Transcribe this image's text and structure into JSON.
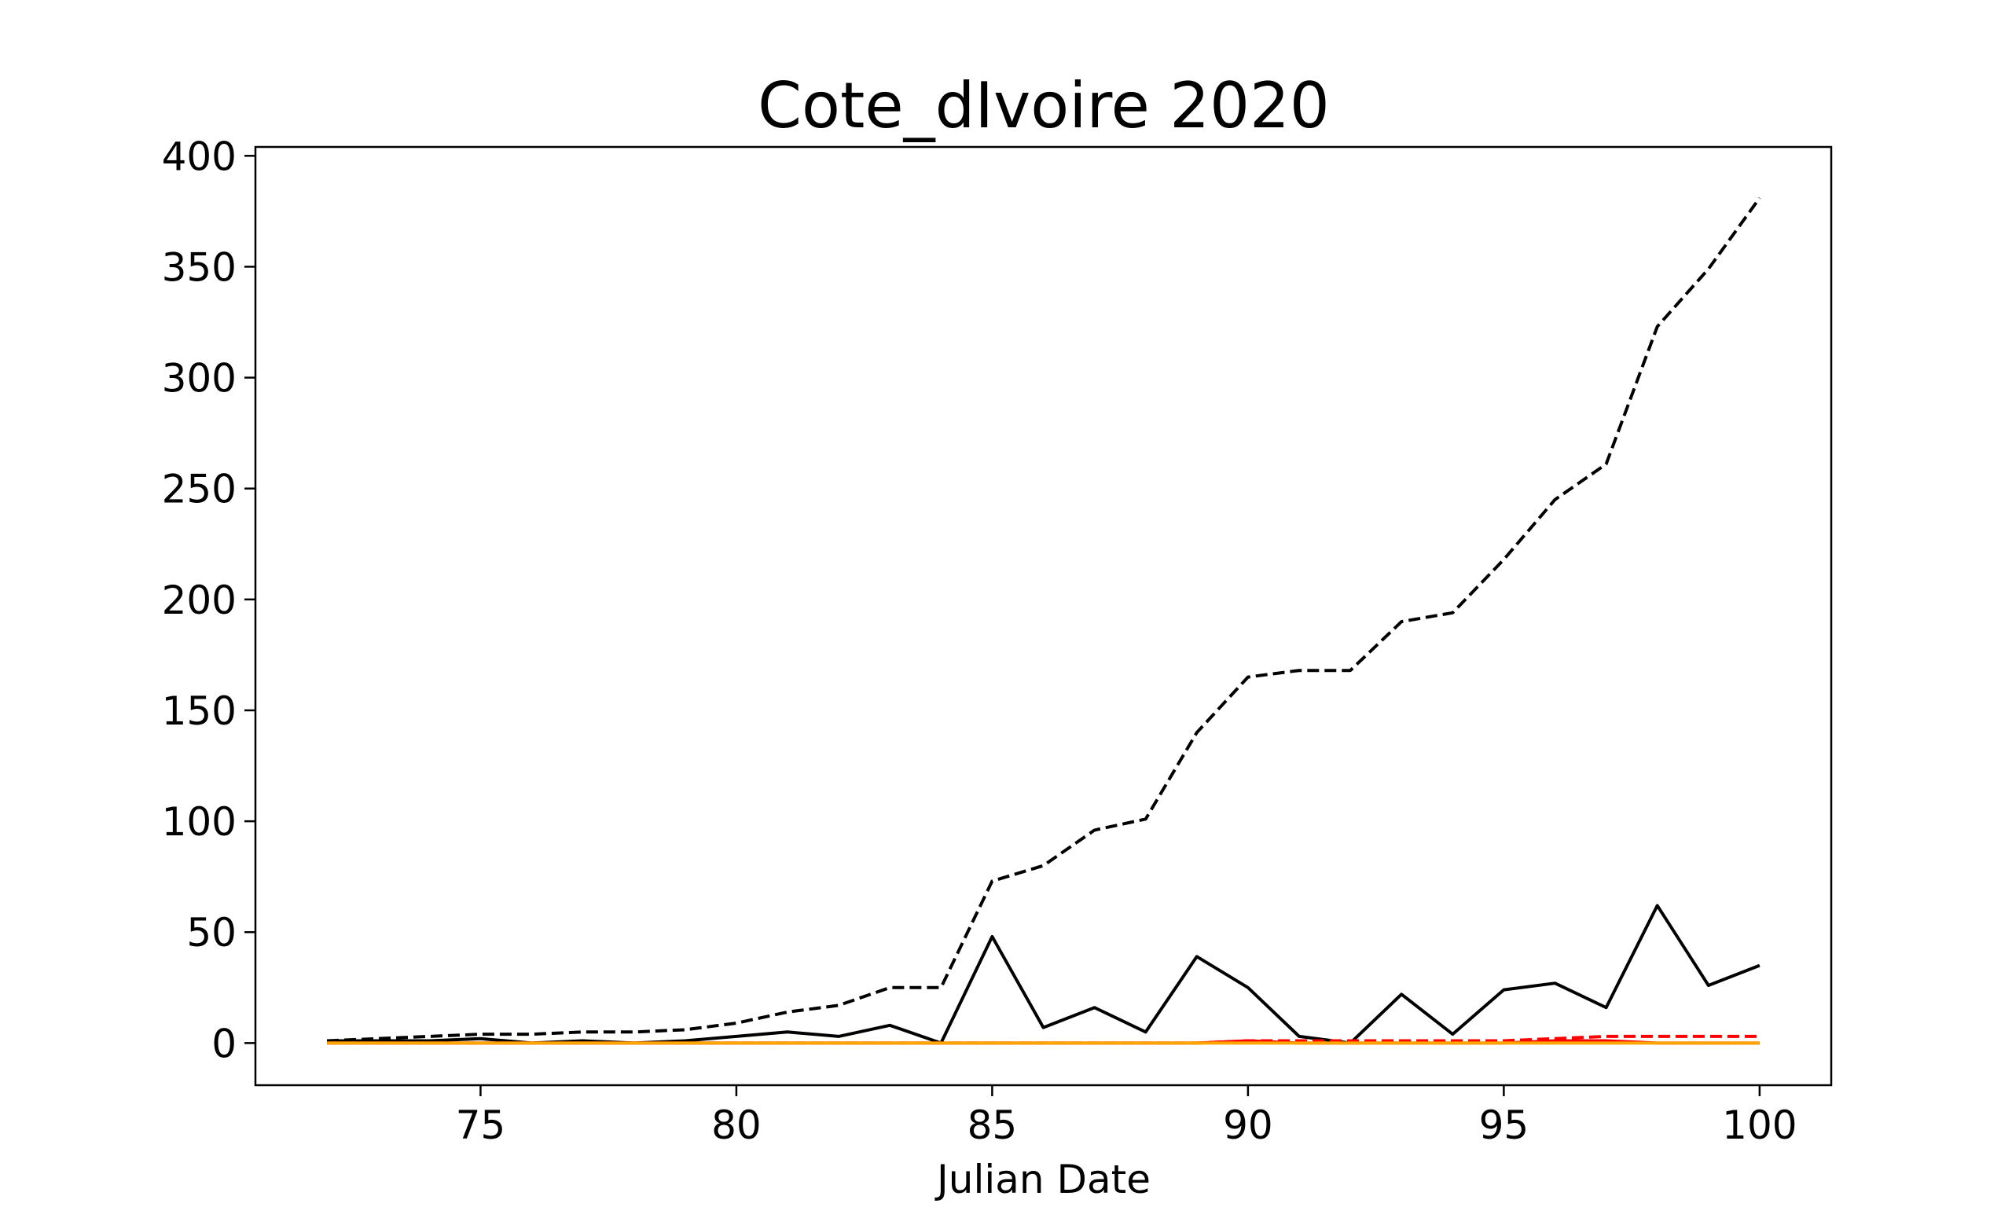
{
  "chart_data": {
    "type": "line",
    "title": "Cote_dIvoire 2020",
    "xlabel": "Julian Date",
    "ylabel": "",
    "xlim": [
      70.6,
      101.4
    ],
    "ylim": [
      -19,
      404
    ],
    "xticks": [
      75,
      80,
      85,
      90,
      95,
      100
    ],
    "yticks": [
      0,
      50,
      100,
      150,
      200,
      250,
      300,
      350,
      400
    ],
    "grid": false,
    "legend": "none",
    "x": [
      72,
      73,
      74,
      75,
      76,
      77,
      78,
      79,
      80,
      81,
      82,
      83,
      84,
      85,
      86,
      87,
      88,
      89,
      90,
      91,
      92,
      93,
      94,
      95,
      96,
      97,
      98,
      99,
      100
    ],
    "series": [
      {
        "color": "#000000",
        "style": "dashed",
        "values": [
          1,
          2,
          3,
          4,
          4,
          5,
          5,
          6,
          9,
          14,
          17,
          25,
          25,
          73,
          80,
          96,
          101,
          140,
          165,
          168,
          168,
          190,
          194,
          218,
          245,
          261,
          323,
          349,
          381
        ]
      },
      {
        "color": "#000000",
        "style": "solid",
        "values": [
          1,
          1,
          1,
          2,
          0,
          1,
          0,
          1,
          3,
          5,
          3,
          8,
          0,
          48,
          7,
          16,
          5,
          39,
          25,
          3,
          0,
          22,
          4,
          24,
          27,
          16,
          62,
          26,
          35
        ]
      },
      {
        "color": "#ff0000",
        "style": "dashed",
        "values": [
          0,
          0,
          0,
          0,
          0,
          0,
          0,
          0,
          0,
          0,
          0,
          0,
          0,
          0,
          0,
          0,
          0,
          0,
          1,
          1,
          1,
          1,
          1,
          1,
          2,
          3,
          3,
          3,
          3
        ]
      },
      {
        "color": "#ff0000",
        "style": "solid",
        "values": [
          0,
          0,
          0,
          0,
          0,
          0,
          0,
          0,
          0,
          0,
          0,
          0,
          0,
          0,
          0,
          0,
          0,
          0,
          1,
          0,
          0,
          0,
          0,
          0,
          1,
          1,
          0,
          0,
          0
        ]
      },
      {
        "color": "#ffa500",
        "style": "solid",
        "values": [
          0,
          0,
          0,
          0,
          0,
          0,
          0,
          0,
          0,
          0,
          0,
          0,
          0,
          0,
          0,
          0,
          0,
          0,
          0,
          0,
          0,
          0,
          0,
          0,
          0,
          0,
          0,
          0,
          0
        ]
      }
    ]
  }
}
